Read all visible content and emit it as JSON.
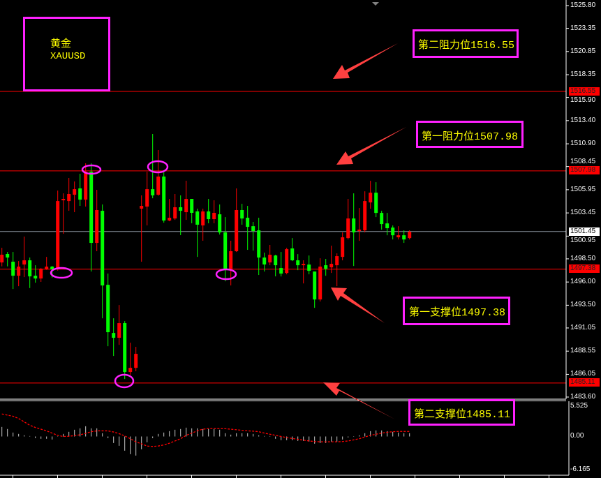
{
  "symbol_box": {
    "name_cn": "黄金",
    "symbol": "XAUUSD"
  },
  "annotations": {
    "resistance2": {
      "label": "第二阻力位",
      "value": "1516.55"
    },
    "resistance1": {
      "label": "第一阻力位",
      "value": "1507.98"
    },
    "support1": {
      "label": "第一支撑位",
      "value": "1497.38"
    },
    "support2": {
      "label": "第二支撑位",
      "value": "1485.11"
    }
  },
  "price_tags": {
    "r2": "1516.55",
    "r1": "1507.98",
    "current": "1501.45",
    "s1": "1497.38",
    "s2": "1485.11"
  },
  "colors": {
    "background": "#000000",
    "up_candle": "#ff0000",
    "down_candle": "#00ff00",
    "level_line": "#ff0000",
    "current_line": "#8c96a0",
    "annotation_border": "#ff21ff",
    "annotation_text": "#ffff00",
    "arrow": "#ff4040",
    "histogram": "#c8c8c8",
    "signal": "#ff0000"
  },
  "chart_data": [
    {
      "type": "candlestick",
      "symbol": "XAUUSD",
      "ylim": [
        1483.6,
        1525.8
      ],
      "y_ticks": [
        "1525.80",
        "1523.35",
        "1520.85",
        "1518.35",
        "1515.90",
        "1513.40",
        "1510.90",
        "1508.45",
        "1505.95",
        "1503.45",
        "1500.95",
        "1498.50",
        "1496.00",
        "1493.50",
        "1491.05",
        "1488.55",
        "1486.05",
        "1483.60"
      ],
      "horizontal_levels": [
        1516.55,
        1507.98,
        1497.38,
        1485.11
      ],
      "current_price": 1501.45,
      "candle_fields": [
        "open",
        "high",
        "low",
        "close"
      ],
      "candles": [
        [
          1498.11,
          1499.69,
          1497.69,
          1498.94
        ],
        [
          1499.02,
          1499.24,
          1497.69,
          1498.64
        ],
        [
          1498.19,
          1499.24,
          1495.25,
          1496.68
        ],
        [
          1496.68,
          1498.26,
          1495.55,
          1497.66
        ],
        [
          1497.89,
          1500.9,
          1496.53,
          1498.34
        ],
        [
          1498.34,
          1498.64,
          1495.35,
          1496.61
        ],
        [
          1496.68,
          1497.81,
          1495.93,
          1496.38
        ],
        [
          1496.38,
          1497.51,
          1496.01,
          1497.44
        ],
        [
          1497.36,
          1498.71,
          1497.31,
          1497.66
        ],
        [
          1497.66,
          1497.74,
          1496.48,
          1497.36
        ],
        [
          1497.36,
          1505.86,
          1497.23,
          1504.73
        ],
        [
          1504.81,
          1505.56,
          1501.2,
          1504.96
        ],
        [
          1504.73,
          1507.22,
          1503.68,
          1505.49
        ],
        [
          1505.41,
          1506.84,
          1503.53,
          1506.01
        ],
        [
          1506.09,
          1507.67,
          1504.21,
          1504.88
        ],
        [
          1504.88,
          1508.8,
          1504.13,
          1507.89
        ],
        [
          1507.89,
          1508.8,
          1497.13,
          1500.22
        ],
        [
          1500.22,
          1505.94,
          1499.32,
          1503.76
        ],
        [
          1503.68,
          1504.36,
          1492.09,
          1495.63
        ],
        [
          1495.7,
          1496.91,
          1489.08,
          1490.59
        ],
        [
          1490.51,
          1492.09,
          1488.03,
          1489.99
        ],
        [
          1489.99,
          1493.52,
          1489.23,
          1491.57
        ],
        [
          1491.57,
          1491.79,
          1485.55,
          1486.3
        ],
        [
          1486.3,
          1489.46,
          1486.0,
          1486.75
        ],
        [
          1486.75,
          1489.01,
          1486.38,
          1488.26
        ],
        [
          1503.91,
          1505.34,
          1498.19,
          1504.21
        ],
        [
          1504.13,
          1507.89,
          1502.1,
          1506.01
        ],
        [
          1506.01,
          1511.96,
          1505.03,
          1505.34
        ],
        [
          1505.41,
          1510.23,
          1505.3,
          1507.37
        ],
        [
          1507.37,
          1507.82,
          1502.4,
          1502.63
        ],
        [
          1502.63,
          1504.96,
          1502.55,
          1502.93
        ],
        [
          1502.85,
          1505.49,
          1502.7,
          1504.06
        ],
        [
          1504.06,
          1505.34,
          1501.05,
          1503.68
        ],
        [
          1503.53,
          1506.92,
          1502.7,
          1504.96
        ],
        [
          1504.96,
          1504.96,
          1502.33,
          1503.46
        ],
        [
          1503.61,
          1503.91,
          1498.71,
          1502.18
        ],
        [
          1502.1,
          1503.91,
          1500.45,
          1503.61
        ],
        [
          1503.61,
          1504.96,
          1502.33,
          1502.78
        ],
        [
          1502.78,
          1504.81,
          1502.33,
          1503.46
        ],
        [
          1503.3,
          1504.36,
          1501.12,
          1501.35
        ],
        [
          1501.35,
          1503.0,
          1496.08,
          1497.44
        ],
        [
          1497.44,
          1500.45,
          1495.63,
          1499.32
        ],
        [
          1499.32,
          1506.09,
          1499.24,
          1503.76
        ],
        [
          1503.76,
          1504.43,
          1502.18,
          1502.85
        ],
        [
          1502.93,
          1504.21,
          1499.47,
          1501.95
        ],
        [
          1502.02,
          1502.48,
          1499.39,
          1501.5
        ],
        [
          1501.57,
          1502.93,
          1496.76,
          1498.64
        ],
        [
          1498.64,
          1499.17,
          1497.13,
          1497.89
        ],
        [
          1498.11,
          1500.0,
          1497.81,
          1498.94
        ],
        [
          1498.86,
          1498.94,
          1496.61,
          1497.81
        ],
        [
          1497.51,
          1499.24,
          1496.6,
          1496.91
        ],
        [
          1496.98,
          1499.69,
          1496.83,
          1499.54
        ],
        [
          1499.62,
          1500.74,
          1498.26,
          1498.34
        ],
        [
          1498.34,
          1499.01,
          1497.28,
          1497.81
        ],
        [
          1497.81,
          1498.34,
          1495.85,
          1497.96
        ],
        [
          1497.88,
          1498.86,
          1496.83,
          1497.21
        ],
        [
          1497.13,
          1497.13,
          1493.22,
          1494.12
        ],
        [
          1494.12,
          1498.56,
          1493.9,
          1497.66
        ],
        [
          1497.81,
          1498.49,
          1496.68,
          1497.43
        ],
        [
          1497.58,
          1499.92,
          1496.98,
          1497.96
        ],
        [
          1497.81,
          1499.09,
          1495.55,
          1498.79
        ],
        [
          1498.71,
          1501.35,
          1498.34,
          1500.82
        ],
        [
          1500.74,
          1504.96,
          1500.59,
          1502.85
        ],
        [
          1502.85,
          1505.56,
          1497.73,
          1501.35
        ],
        [
          1501.5,
          1503.98,
          1500.44,
          1501.65
        ],
        [
          1501.57,
          1505.78,
          1501.35,
          1504.73
        ],
        [
          1504.58,
          1506.91,
          1503.9,
          1505.63
        ],
        [
          1505.63,
          1506.76,
          1503.0,
          1503.45
        ],
        [
          1503.45,
          1503.68,
          1501.65,
          1502.25
        ],
        [
          1502.32,
          1503.45,
          1501.04,
          1501.8
        ],
        [
          1501.87,
          1502.1,
          1500.59,
          1501.04
        ],
        [
          1500.82,
          1502.02,
          1500.59,
          1501.04
        ],
        [
          1501.04,
          1501.57,
          1500.22,
          1500.59
        ],
        [
          1500.74,
          1501.57,
          1500.59,
          1501.42
        ]
      ]
    },
    {
      "type": "bar",
      "indicator": "oscillator histogram with signal line",
      "ylim": [
        -6.165,
        5.525
      ],
      "y_ticks": [
        "5.525",
        "0.00",
        "-6.165"
      ],
      "histogram": [
        1.7,
        1.33,
        0.7,
        0.46,
        0.21,
        0.08,
        -0.29,
        -0.41,
        -0.41,
        -0.54,
        0.05,
        0.46,
        0.83,
        1.2,
        1.45,
        1.82,
        1.45,
        1.45,
        0.58,
        -0.29,
        -1.16,
        -1.66,
        -2.53,
        -3.15,
        -3.4,
        -2.28,
        -1.04,
        -0.29,
        0.46,
        0.7,
        0.95,
        1.2,
        1.33,
        1.57,
        1.45,
        1.45,
        1.33,
        1.33,
        1.33,
        1.2,
        0.58,
        0.33,
        0.58,
        0.58,
        0.58,
        0.46,
        0.21,
        0.08,
        0.08,
        -0.41,
        -0.66,
        -0.66,
        -0.66,
        -0.79,
        -0.79,
        -0.91,
        -1.28,
        -1.16,
        -1.16,
        -0.91,
        -0.91,
        -0.54,
        -0.17,
        0.0,
        0.21,
        0.58,
        0.95,
        1.08,
        1.08,
        0.95,
        0.83,
        0.7,
        0.58,
        0.58
      ],
      "signal": [
        4.0,
        3.8,
        3.6,
        3.2,
        2.6,
        2.0,
        1.6,
        1.3,
        1.0,
        0.6,
        0.2,
        0.0,
        0.04,
        0.15,
        0.3,
        0.55,
        0.85,
        1.0,
        1.0,
        1.0,
        0.8,
        0.5,
        0.1,
        -0.4,
        -0.95,
        -1.3,
        -1.7,
        -1.78,
        -1.7,
        -1.5,
        -1.2,
        -0.8,
        -0.4,
        0.2,
        0.6,
        1.0,
        1.3,
        1.41,
        1.41,
        1.4,
        1.38,
        1.3,
        1.2,
        1.1,
        1.0,
        0.95,
        0.85,
        0.6,
        0.4,
        0.2,
        0.0,
        -0.2,
        -0.35,
        -0.5,
        -0.65,
        -0.8,
        -0.9,
        -0.95,
        -0.95,
        -0.95,
        -0.95,
        -0.9,
        -0.8,
        -0.6,
        -0.4,
        -0.1,
        0.2,
        0.4,
        0.6,
        0.75,
        0.85,
        0.9,
        0.9,
        0.9
      ]
    }
  ]
}
